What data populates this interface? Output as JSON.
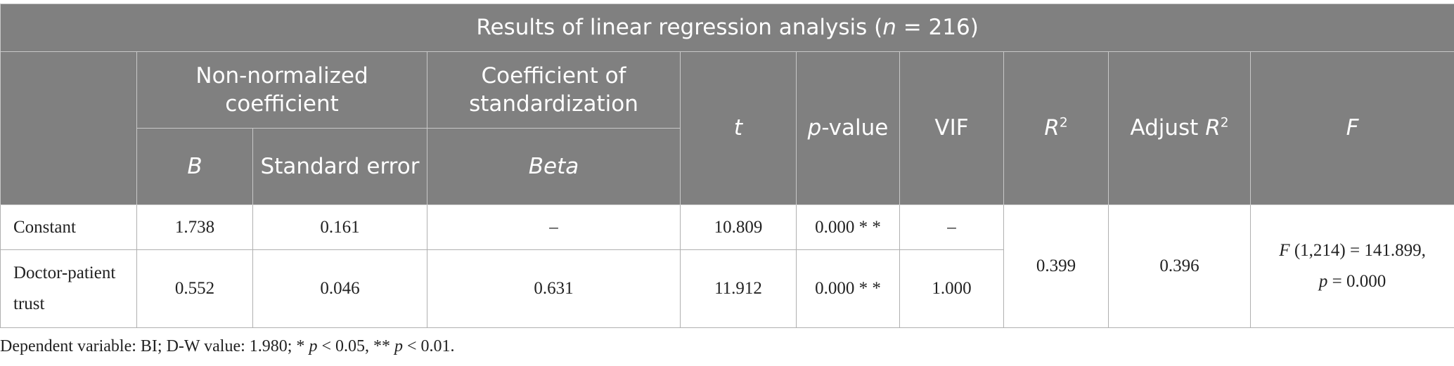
{
  "title": [
    "Results of linear regression analysis (",
    "n",
    " = 216)"
  ],
  "header": {
    "groups": [
      "Non-normalized coefficient",
      "Coefficient of standardization"
    ],
    "sub": [
      "B",
      "Standard error",
      "Beta"
    ],
    "t": "t",
    "p_value": [
      "p",
      "-value"
    ],
    "vif": "VIF",
    "r2": [
      "R",
      "2"
    ],
    "adj_r2": [
      "Adjust ",
      "R",
      "2"
    ],
    "f": "F"
  },
  "rows": [
    [
      "Constant",
      "1.738",
      "0.161",
      "–",
      "10.809",
      "0.000 * *",
      "–"
    ],
    [
      "Doctor-patient trust",
      "0.552",
      "0.046",
      "0.631",
      "11.912",
      "0.000 * *",
      "1.000"
    ]
  ],
  "model": {
    "r2": "0.399",
    "adj_r2": "0.396",
    "f": [
      "F",
      " (1,214) = 141.899,",
      "p",
      " = 0.000"
    ]
  },
  "footnote": [
    "Dependent variable: BI; D-W value: 1.980; * ",
    "p",
    " < 0.05, ** ",
    "p",
    " < 0.01."
  ]
}
